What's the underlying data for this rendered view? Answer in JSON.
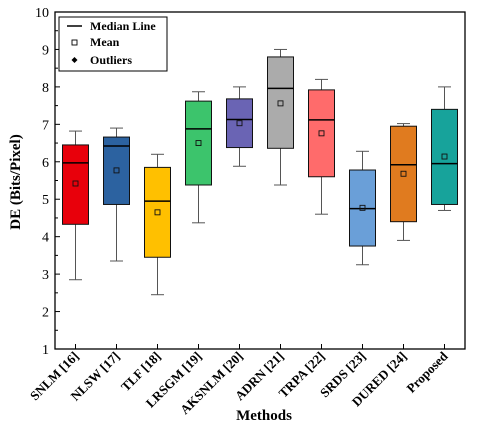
{
  "chart_data": {
    "type": "box",
    "xlabel": "Methods",
    "ylabel": "DE (Bits/Pixel)",
    "ylim": [
      1,
      10
    ],
    "yticks": [
      1,
      2,
      3,
      4,
      5,
      6,
      7,
      8,
      9,
      10
    ],
    "grid": false,
    "legend": {
      "placement": "top-left",
      "entries": [
        {
          "label": "Median Line",
          "symbol": "line"
        },
        {
          "label": "Mean",
          "symbol": "open-square"
        },
        {
          "label": "Outliers",
          "symbol": "filled-diamond"
        }
      ]
    },
    "categories": [
      "SNLM [16]",
      "NLSW [17]",
      "TLF [18]",
      "LRSGM [19]",
      "AKSNLM [20]",
      "ADRN [21]",
      "TRPA [22]",
      "SRDS [23]",
      "DURED [24]",
      "Proposed"
    ],
    "boxes": [
      {
        "min": 2.85,
        "q1": 4.33,
        "median": 5.97,
        "q3": 6.45,
        "max": 6.82,
        "mean": 5.42,
        "color": "#e8000b"
      },
      {
        "min": 3.35,
        "q1": 4.86,
        "median": 6.42,
        "q3": 6.66,
        "max": 6.9,
        "mean": 5.77,
        "color": "#2c62a0"
      },
      {
        "min": 2.45,
        "q1": 3.45,
        "median": 4.95,
        "q3": 5.85,
        "max": 6.2,
        "mean": 4.65,
        "color": "#ffc000"
      },
      {
        "min": 4.37,
        "q1": 5.38,
        "median": 6.88,
        "q3": 7.62,
        "max": 7.87,
        "mean": 6.5,
        "color": "#3cc46c"
      },
      {
        "min": 5.88,
        "q1": 6.38,
        "median": 7.13,
        "q3": 7.68,
        "max": 8.0,
        "mean": 7.03,
        "color": "#6a64b4"
      },
      {
        "min": 5.38,
        "q1": 6.36,
        "median": 7.96,
        "q3": 8.8,
        "max": 9.0,
        "mean": 7.56,
        "color": "#ababab"
      },
      {
        "min": 4.6,
        "q1": 5.6,
        "median": 7.12,
        "q3": 7.92,
        "max": 8.2,
        "mean": 6.76,
        "color": "#ff6b6b"
      },
      {
        "min": 3.25,
        "q1": 3.75,
        "median": 4.75,
        "q3": 5.78,
        "max": 6.28,
        "mean": 4.77,
        "color": "#6a9fd8"
      },
      {
        "min": 3.9,
        "q1": 4.4,
        "median": 5.92,
        "q3": 6.95,
        "max": 7.02,
        "mean": 5.68,
        "color": "#e07b1f"
      },
      {
        "min": 4.7,
        "q1": 4.86,
        "median": 5.95,
        "q3": 7.4,
        "max": 8.0,
        "mean": 6.14,
        "color": "#17a39b"
      }
    ]
  }
}
